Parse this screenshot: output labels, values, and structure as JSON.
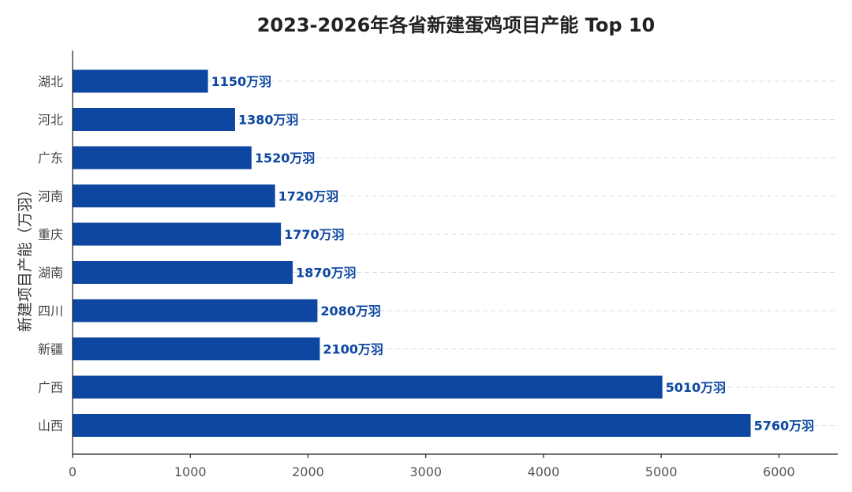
{
  "chart_data": {
    "type": "bar",
    "orientation": "horizontal",
    "title": "2023-2026年各省新建蛋鸡项目产能 Top 10",
    "xlabel": "",
    "ylabel": "新建项目产能（万羽）",
    "categories": [
      "湖北",
      "河北",
      "广东",
      "河南",
      "重庆",
      "湖南",
      "四川",
      "新疆",
      "广西",
      "山西"
    ],
    "values": [
      1150,
      1380,
      1520,
      1720,
      1770,
      1870,
      2080,
      2100,
      5010,
      5760
    ],
    "value_unit_suffix": "万羽",
    "xlim": [
      0,
      6500
    ],
    "xticks": [
      0,
      1000,
      2000,
      3000,
      4000,
      5000,
      6000
    ],
    "grid": "horizontal dashed",
    "bar_color": "#0d47a1",
    "label_color": "#0d47a1"
  }
}
